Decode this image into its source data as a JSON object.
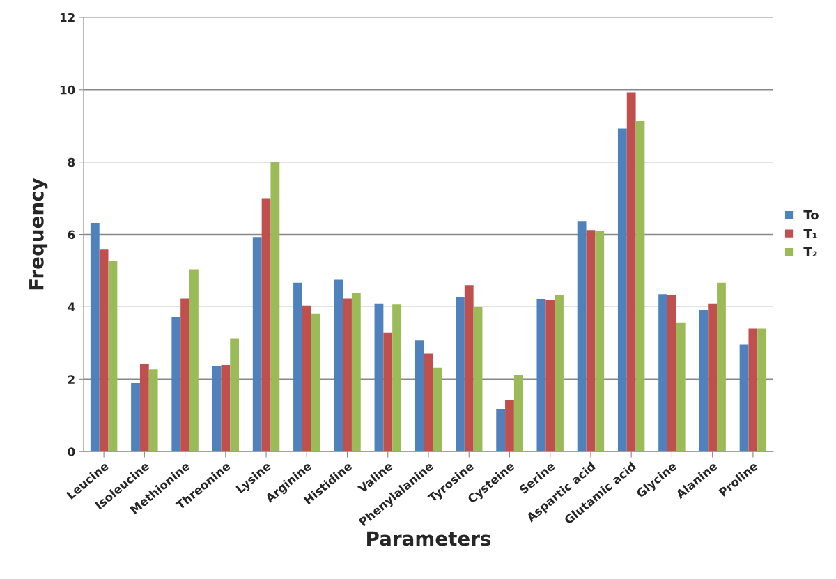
{
  "chart_data": {
    "type": "bar",
    "xlabel": "Parameters",
    "ylabel": "Frequency",
    "categories": [
      "Leucine",
      "Isoleucine",
      "Methionine",
      "Threonine",
      "Lysine",
      "Arginine",
      "Histidine",
      "Valine",
      "Phenylalanine",
      "Tyrosine",
      "Cysteine",
      "Serine",
      "Aspartic acid",
      "Glutamic acid",
      "Glycine",
      "Alanine",
      "Proline"
    ],
    "series": [
      {
        "name": "To",
        "color": "#4f81bd",
        "values": [
          6.32,
          1.9,
          3.72,
          2.37,
          5.93,
          4.67,
          4.75,
          4.09,
          3.08,
          4.28,
          1.18,
          4.22,
          6.37,
          8.93,
          4.35,
          3.91,
          2.96
        ]
      },
      {
        "name": "T₁",
        "color": "#c0504d",
        "values": [
          5.58,
          2.42,
          4.23,
          2.39,
          7.0,
          4.03,
          4.23,
          3.28,
          2.71,
          4.6,
          1.43,
          4.2,
          6.12,
          9.93,
          4.33,
          4.09,
          3.4
        ]
      },
      {
        "name": "T₂",
        "color": "#9bbb59",
        "values": [
          5.27,
          2.27,
          5.04,
          3.13,
          8.0,
          3.82,
          4.38,
          4.06,
          2.32,
          4.0,
          2.12,
          4.33,
          6.1,
          9.13,
          3.57,
          4.67,
          3.4
        ]
      }
    ],
    "ylim": [
      0,
      12
    ],
    "yticks": [
      0,
      2,
      4,
      6,
      8,
      10,
      12
    ],
    "grid": "y",
    "legend": "right"
  }
}
